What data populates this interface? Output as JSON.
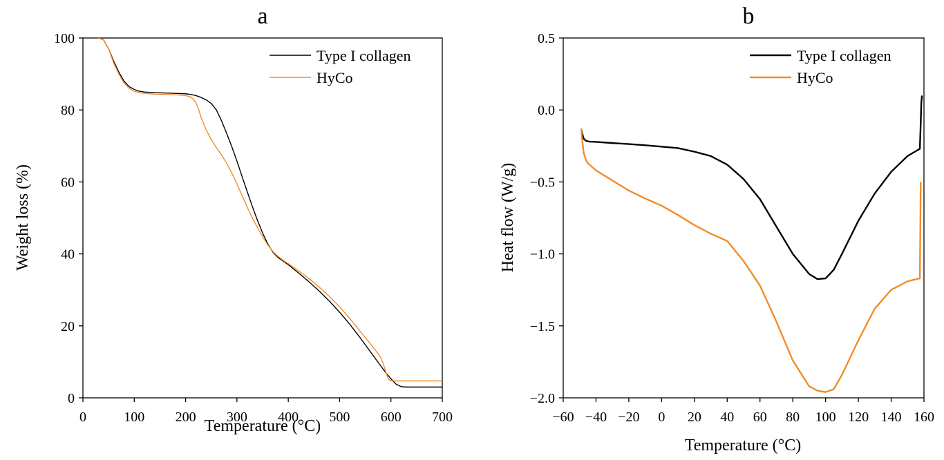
{
  "chart_data": [
    {
      "type": "line",
      "panel_label": "a",
      "xlabel": "Temperature (°C)",
      "ylabel": "Weight loss (%)",
      "xlim": [
        0,
        700
      ],
      "ylim": [
        0,
        100
      ],
      "xticks": [
        0,
        100,
        200,
        300,
        400,
        500,
        600,
        700
      ],
      "yticks": [
        0,
        20,
        40,
        60,
        80,
        100
      ],
      "grid": false,
      "legend_position": "top-right",
      "series": [
        {
          "name": "Type I collagen",
          "color": "#000000",
          "x": [
            30,
            40,
            50,
            60,
            70,
            80,
            90,
            100,
            110,
            120,
            140,
            160,
            180,
            200,
            210,
            220,
            230,
            240,
            250,
            260,
            270,
            280,
            290,
            300,
            310,
            320,
            330,
            340,
            350,
            360,
            370,
            380,
            390,
            400,
            420,
            440,
            460,
            480,
            500,
            520,
            540,
            560,
            580,
            590,
            600,
            610,
            620,
            630,
            650,
            700
          ],
          "y": [
            100,
            99.5,
            97,
            93.5,
            90.5,
            88,
            86.5,
            85.7,
            85.2,
            85,
            84.8,
            84.7,
            84.6,
            84.5,
            84.3,
            84.0,
            83.5,
            82.8,
            81.8,
            80,
            77,
            73.5,
            69.8,
            65.8,
            61.5,
            57.3,
            53.2,
            49.3,
            45.8,
            42.8,
            40.5,
            39,
            38,
            37,
            34.7,
            32.3,
            29.7,
            26.9,
            23.8,
            20.4,
            16.7,
            12.8,
            8.9,
            7,
            5.3,
            3.8,
            3.1,
            3.0,
            3.0,
            3.0
          ]
        },
        {
          "name": "HyCo",
          "color": "#F28C28",
          "x": [
            30,
            40,
            50,
            60,
            70,
            80,
            90,
            100,
            110,
            120,
            140,
            160,
            180,
            200,
            210,
            215,
            220,
            225,
            230,
            240,
            250,
            260,
            270,
            280,
            290,
            300,
            310,
            320,
            330,
            340,
            350,
            360,
            370,
            380,
            390,
            400,
            420,
            440,
            460,
            480,
            500,
            520,
            540,
            560,
            570,
            580,
            585,
            590,
            595,
            600,
            620,
            650,
            700
          ],
          "y": [
            100,
            99.5,
            97,
            93,
            90,
            87.5,
            86,
            85.2,
            84.8,
            84.6,
            84.4,
            84.3,
            84.2,
            84,
            83.6,
            83,
            82,
            80.3,
            78,
            74.5,
            71.8,
            69.5,
            67.5,
            65.2,
            62.5,
            59.5,
            56.2,
            53,
            50,
            47.3,
            44.8,
            42.5,
            40.7,
            39.3,
            38.2,
            37.3,
            35.3,
            33.2,
            30.8,
            28.2,
            25.3,
            22,
            18.5,
            15,
            13.2,
            11.2,
            9.5,
            7.2,
            5.2,
            4.7,
            4.7,
            4.7,
            4.7
          ]
        }
      ]
    },
    {
      "type": "line",
      "panel_label": "b",
      "xlabel": "Temperature (°C)",
      "ylabel": "Heat flow (W/g)",
      "xlim": [
        -60,
        160
      ],
      "ylim": [
        -2.0,
        0.5
      ],
      "xticks": [
        -60,
        -40,
        -20,
        0,
        20,
        40,
        60,
        80,
        100,
        120,
        140,
        160
      ],
      "yticks": [
        -2.0,
        -1.5,
        -1.0,
        -0.5,
        0.0,
        0.5
      ],
      "xtick_labels": [
        "−60",
        "−40",
        "−20",
        "0",
        "20",
        "40",
        "60",
        "80",
        "100",
        "120",
        "140",
        "160"
      ],
      "ytick_labels": [
        "−2.0",
        "−1.5",
        "−1.0",
        "−0.5",
        "0.0",
        "0.5"
      ],
      "grid": false,
      "legend_position": "top-right",
      "series": [
        {
          "name": "Type I collagen",
          "color": "#000000",
          "x": [
            -49,
            -48.5,
            -47.5,
            -46,
            -44,
            -40,
            -30,
            -20,
            -10,
            0,
            10,
            20,
            30,
            40,
            50,
            60,
            70,
            80,
            90,
            95,
            100,
            105,
            110,
            120,
            130,
            140,
            150,
            157.5,
            158,
            158.4,
            158.8
          ],
          "y": [
            -0.13,
            -0.16,
            -0.2,
            -0.215,
            -0.22,
            -0.222,
            -0.23,
            -0.237,
            -0.245,
            -0.255,
            -0.265,
            -0.29,
            -0.32,
            -0.38,
            -0.48,
            -0.62,
            -0.81,
            -1.0,
            -1.14,
            -1.175,
            -1.17,
            -1.11,
            -1.0,
            -0.77,
            -0.58,
            -0.43,
            -0.32,
            -0.27,
            -0.1,
            0.05,
            0.1
          ]
        },
        {
          "name": "HyCo",
          "color": "#F28C28",
          "x": [
            -49,
            -48.5,
            -47.5,
            -46,
            -45,
            -40,
            -30,
            -20,
            -10,
            0,
            10,
            20,
            30,
            40,
            50,
            60,
            70,
            80,
            90,
            95,
            100,
            105,
            110,
            120,
            130,
            140,
            150,
            157.5,
            157.8,
            158
          ],
          "y": [
            -0.13,
            -0.2,
            -0.3,
            -0.35,
            -0.37,
            -0.42,
            -0.49,
            -0.56,
            -0.615,
            -0.665,
            -0.73,
            -0.8,
            -0.86,
            -0.91,
            -1.05,
            -1.22,
            -1.47,
            -1.74,
            -1.92,
            -1.95,
            -1.96,
            -1.94,
            -1.84,
            -1.6,
            -1.38,
            -1.25,
            -1.19,
            -1.17,
            -0.8,
            -0.5
          ]
        }
      ]
    }
  ]
}
